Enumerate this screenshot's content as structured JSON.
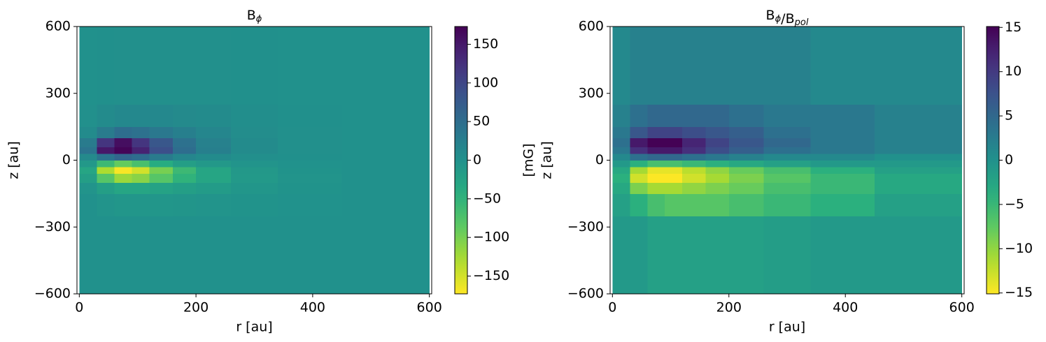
{
  "chart_data": [
    {
      "type": "heatmap",
      "title": [
        {
          "text": "B",
          "sub": "ϕ"
        }
      ],
      "x_label": "r [au]",
      "y_label": "z [au]",
      "colorbar_label": "[mG]",
      "colormap": "viridis_r",
      "xlim": [
        -4,
        604
      ],
      "ylim": [
        -600,
        600
      ],
      "xticks": [
        0,
        200,
        400,
        600
      ],
      "yticks": [
        {
          "value": -600,
          "label": "−600"
        },
        {
          "value": -300,
          "label": "−300"
        },
        0,
        300,
        600
      ],
      "vlim": [
        -173,
        173
      ],
      "vticks": [
        {
          "value": -150,
          "label": "−150"
        },
        {
          "value": -100,
          "label": "−100"
        },
        {
          "value": -50,
          "label": "−50"
        },
        0,
        50,
        100,
        150
      ],
      "x_bins": [
        0,
        30,
        60,
        90,
        120,
        160,
        200,
        260,
        340,
        450,
        600
      ],
      "y_bins": [
        -600,
        -250,
        -150,
        -100,
        -60,
        -30,
        0,
        30,
        60,
        100,
        150,
        250,
        600
      ],
      "values": [
        [
          0,
          0,
          0,
          0,
          0,
          0,
          0,
          0,
          0,
          0
        ],
        [
          0,
          -5,
          -8,
          -8,
          -8,
          -6,
          -5,
          -3,
          -1,
          0
        ],
        [
          -5,
          -20,
          -30,
          -30,
          -25,
          -20,
          -15,
          -8,
          -3,
          0
        ],
        [
          -20,
          -80,
          -120,
          -110,
          -80,
          -50,
          -30,
          -12,
          -4,
          0
        ],
        [
          -30,
          -130,
          -170,
          -150,
          -100,
          -60,
          -30,
          -10,
          -3,
          0
        ],
        [
          -10,
          -60,
          -90,
          -70,
          -40,
          -20,
          -10,
          -4,
          -1,
          0
        ],
        [
          10,
          40,
          60,
          50,
          30,
          15,
          8,
          3,
          1,
          0
        ],
        [
          40,
          150,
          170,
          140,
          90,
          50,
          25,
          8,
          2,
          0
        ],
        [
          30,
          120,
          160,
          120,
          80,
          45,
          22,
          8,
          2,
          0
        ],
        [
          8,
          30,
          50,
          45,
          35,
          25,
          15,
          6,
          2,
          0
        ],
        [
          2,
          8,
          12,
          12,
          12,
          10,
          8,
          4,
          1,
          0
        ],
        [
          0,
          1,
          2,
          2,
          2,
          2,
          2,
          1,
          0,
          0
        ]
      ]
    },
    {
      "type": "heatmap",
      "title": [
        {
          "text": "B",
          "sub": "ϕ"
        },
        {
          "text": "/B",
          "sub": "pol"
        }
      ],
      "x_label": "r [au]",
      "y_label": "z [au]",
      "colormap": "viridis_r",
      "xlim": [
        -4,
        604
      ],
      "ylim": [
        -600,
        600
      ],
      "xticks": [
        0,
        200,
        400,
        600
      ],
      "yticks": [
        {
          "value": -600,
          "label": "−600"
        },
        {
          "value": -300,
          "label": "−300"
        },
        0,
        300,
        600
      ],
      "vlim": [
        -15.1,
        15.1
      ],
      "vticks": [
        {
          "value": -15,
          "label": "−15"
        },
        {
          "value": -10,
          "label": "−10"
        },
        {
          "value": -5,
          "label": "−5"
        },
        0,
        5,
        10,
        15
      ],
      "x_bins": [
        0,
        30,
        60,
        90,
        120,
        160,
        200,
        260,
        340,
        450,
        600
      ],
      "y_bins": [
        -600,
        -250,
        -150,
        -100,
        -60,
        -30,
        0,
        30,
        60,
        100,
        150,
        250,
        600
      ],
      "values": [
        [
          -1,
          -1,
          -2,
          -2,
          -2,
          -2,
          -2,
          -1.5,
          -1,
          -1
        ],
        [
          -2,
          -4,
          -6,
          -7,
          -7,
          -7,
          -6,
          -5,
          -4,
          -2
        ],
        [
          -3,
          -9,
          -11,
          -11,
          -10,
          -9,
          -8,
          -6,
          -5,
          -3
        ],
        [
          -4,
          -13,
          -15,
          -15,
          -13,
          -11,
          -9,
          -7,
          -5,
          -3
        ],
        [
          -3,
          -11,
          -14,
          -14,
          -12,
          -10,
          -8,
          -6,
          -4,
          -2
        ],
        [
          -1,
          -4,
          -6,
          -6,
          -5,
          -4,
          -3,
          -2,
          -1,
          -1
        ],
        [
          1,
          4,
          5,
          5,
          4,
          3,
          2,
          1,
          1,
          0
        ],
        [
          3,
          11,
          13,
          13,
          11,
          8,
          6,
          4,
          3,
          2
        ],
        [
          4,
          13,
          15,
          15,
          12,
          9,
          7,
          5,
          3,
          2
        ],
        [
          3,
          7,
          9,
          9,
          8,
          7,
          6,
          4,
          3,
          2
        ],
        [
          2,
          4,
          5,
          5,
          5,
          5,
          4,
          3,
          3,
          2
        ],
        [
          1,
          2,
          2,
          2,
          2,
          2,
          2,
          2,
          1,
          1
        ]
      ]
    }
  ]
}
